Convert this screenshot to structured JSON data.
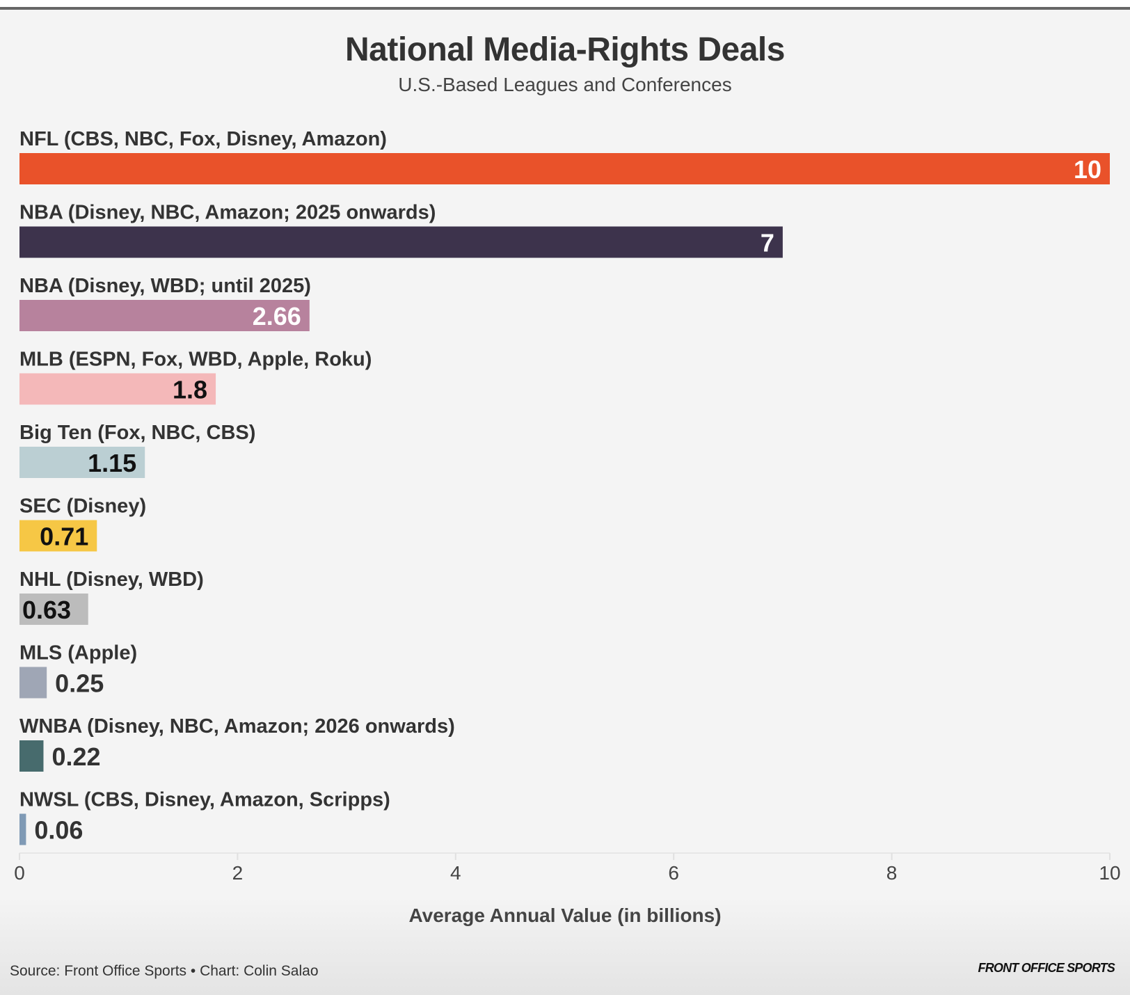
{
  "header": {
    "title": "National Media-Rights Deals",
    "subtitle": "U.S.-Based Leagues and Conferences"
  },
  "footer": {
    "source": "Source: Front Office Sports • Chart: Colin Salao",
    "brand": "FRONT OFFICE SPORTS"
  },
  "chart_data": {
    "type": "bar",
    "orientation": "horizontal",
    "title": "National Media-Rights Deals",
    "subtitle": "U.S.-Based Leagues and Conferences",
    "xlabel": "Average Annual Value (in billions)",
    "ylabel": "",
    "xlim": [
      0,
      10
    ],
    "xticks": [
      0,
      2,
      4,
      6,
      8,
      10
    ],
    "grid": false,
    "legend": "none",
    "categories": [
      "NFL (CBS, NBC, Fox, Disney, Amazon)",
      "NBA (Disney, NBC, Amazon; 2025 onwards)",
      "NBA (Disney, WBD; until 2025)",
      "MLB (ESPN, Fox, WBD, Apple, Roku)",
      "Big Ten (Fox, NBC, CBS)",
      "SEC (Disney)",
      "NHL (Disney, WBD)",
      "MLS (Apple)",
      "WNBA (Disney, NBC, Amazon; 2026 onwards)",
      "NWSL (CBS, Disney, Amazon, Scripps)"
    ],
    "values": [
      10,
      7,
      2.66,
      1.8,
      1.15,
      0.71,
      0.63,
      0.25,
      0.22,
      0.06
    ],
    "value_labels": [
      "10",
      "7",
      "2.66",
      "1.8",
      "1.15",
      "0.71",
      "0.63",
      "0.25",
      "0.22",
      "0.06"
    ],
    "colors": [
      "#e9522a",
      "#3d334c",
      "#b7829d",
      "#f4b8b9",
      "#bbcfd3",
      "#f6c745",
      "#bcbcbc",
      "#9fa6b5",
      "#476b6d",
      "#7f9ab5"
    ],
    "label_colors": [
      "#ffffff",
      "#ffffff",
      "#ffffff",
      "#111111",
      "#111111",
      "#111111",
      "#111111",
      "#333333",
      "#333333",
      "#333333"
    ]
  }
}
